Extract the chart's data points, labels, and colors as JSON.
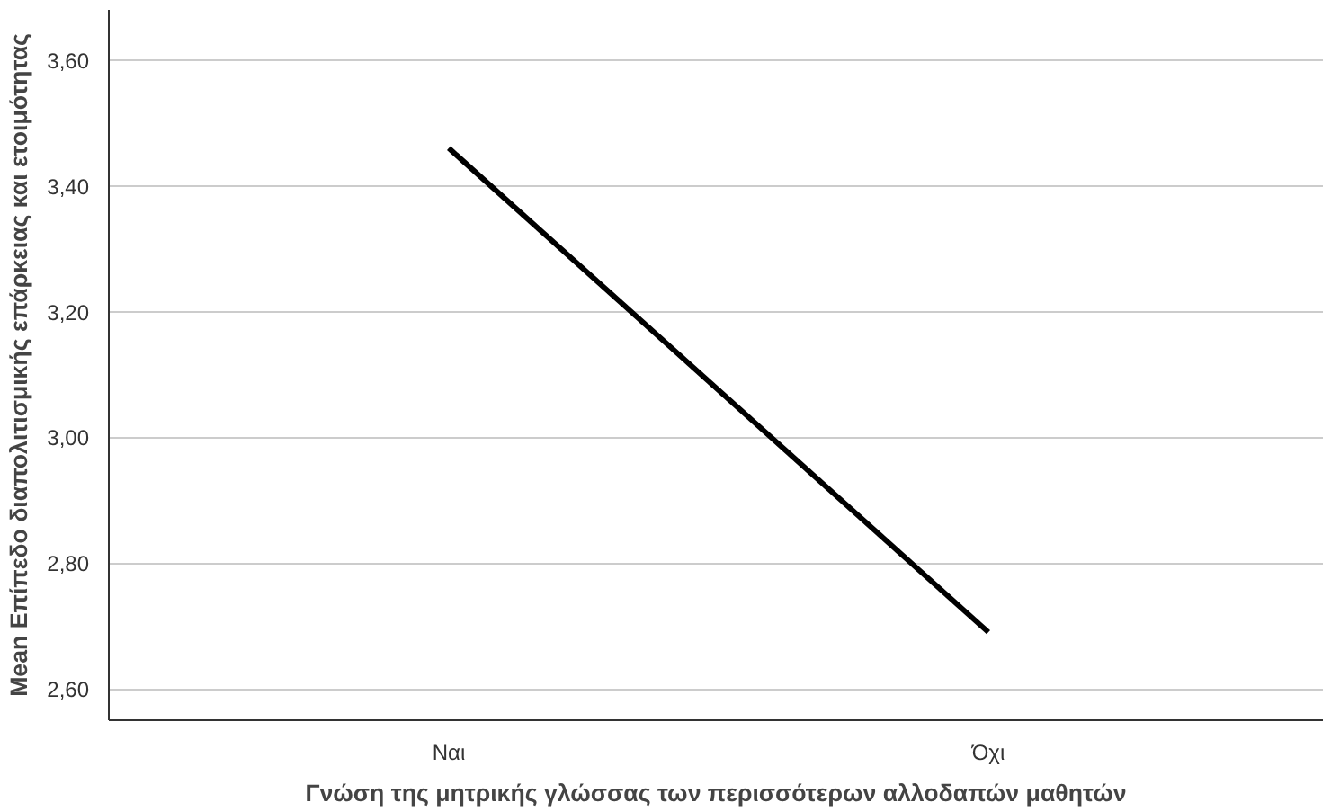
{
  "chart_data": {
    "type": "line",
    "categories": [
      "Ναι",
      "Όχι"
    ],
    "values": [
      3.46,
      2.69
    ],
    "color": "#000000",
    "xlabel": "Γνώση της μητρικής γλώσσας των περισσότερων αλλοδαπών μαθητών",
    "ylabel": "Mean Επίπεδο διαπολιτισμικής επάρκειας και ετοιμότητας",
    "ylim": [
      2.55,
      3.68
    ],
    "yticks": [
      {
        "value": 2.6,
        "label": "2,60"
      },
      {
        "value": 2.8,
        "label": "2,80"
      },
      {
        "value": 3.0,
        "label": "3,00"
      },
      {
        "value": 3.2,
        "label": "3,20"
      },
      {
        "value": 3.4,
        "label": "3,40"
      },
      {
        "value": 3.6,
        "label": "3,60"
      }
    ],
    "grid": "y",
    "line_style": "solid"
  }
}
